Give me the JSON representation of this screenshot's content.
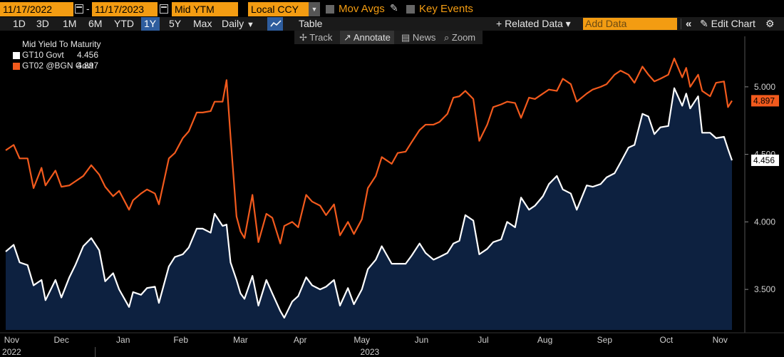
{
  "toolbar": {
    "start_date": "11/17/2022",
    "end_date": "11/17/2023",
    "field": "Mid YTM",
    "currency": "Local CCY",
    "mov_avgs": "Mov Avgs",
    "key_events": "Key Events"
  },
  "periods": [
    "1D",
    "3D",
    "1M",
    "6M",
    "YTD",
    "1Y",
    "5Y",
    "Max"
  ],
  "active_period": "1Y",
  "frequency": "Daily",
  "frequency_arrow": "▼",
  "table_label": "Table",
  "related_data": "+ Related Data ▾",
  "add_data_placeholder": "Add Data",
  "collapse_icon": "«",
  "edit_chart": "Edit Chart",
  "tools": [
    {
      "icon": "✢",
      "label": "Track"
    },
    {
      "icon": "↗",
      "label": "Annotate"
    },
    {
      "icon": "▤",
      "label": "News"
    },
    {
      "icon": "⌕",
      "label": "Zoom"
    }
  ],
  "legend": {
    "title": "Mid Yield To Maturity",
    "series": [
      {
        "name": "GT10 Govt",
        "value": "4.456",
        "color": "#ffffff"
      },
      {
        "name": "GT02 @BGN Govt",
        "value": "4.897",
        "color": "#f25a1d"
      }
    ]
  },
  "colors": {
    "orange": "#f25a1d",
    "white": "#ffffff",
    "area_fill": "#0d2140",
    "accent": "#f39c12"
  },
  "chart_data": {
    "type": "line",
    "title": "Mid Yield To Maturity",
    "ylim": [
      3.2,
      5.3
    ],
    "yticks": [
      3.5,
      4.0,
      4.5,
      5.0
    ],
    "ytick_labels": [
      "3.500",
      "4.000",
      "4.500",
      "5.000"
    ],
    "x_months": [
      "Nov",
      "Dec",
      "Jan",
      "Feb",
      "Mar",
      "Apr",
      "May",
      "Jun",
      "Jul",
      "Aug",
      "Sep",
      "Oct",
      "Nov"
    ],
    "x_years": [
      "2022",
      "2023"
    ],
    "x_range": [
      "2022-11-17",
      "2023-11-17"
    ],
    "series": [
      {
        "name": "GT10 Govt",
        "last": "4.456",
        "color": "#ffffff",
        "fill": true,
        "points": [
          [
            "2022-11-17",
            3.78
          ],
          [
            "2022-11-21",
            3.83
          ],
          [
            "2022-11-24",
            3.7
          ],
          [
            "2022-11-28",
            3.68
          ],
          [
            "2022-12-01",
            3.53
          ],
          [
            "2022-12-05",
            3.57
          ],
          [
            "2022-12-07",
            3.42
          ],
          [
            "2022-12-12",
            3.57
          ],
          [
            "2022-12-15",
            3.44
          ],
          [
            "2022-12-19",
            3.59
          ],
          [
            "2022-12-22",
            3.68
          ],
          [
            "2022-12-26",
            3.82
          ],
          [
            "2022-12-30",
            3.88
          ],
          [
            "2023-01-03",
            3.79
          ],
          [
            "2023-01-06",
            3.56
          ],
          [
            "2023-01-10",
            3.62
          ],
          [
            "2023-01-13",
            3.5
          ],
          [
            "2023-01-18",
            3.37
          ],
          [
            "2023-01-20",
            3.48
          ],
          [
            "2023-01-24",
            3.46
          ],
          [
            "2023-01-27",
            3.51
          ],
          [
            "2023-01-31",
            3.52
          ],
          [
            "2023-02-02",
            3.4
          ],
          [
            "2023-02-07",
            3.67
          ],
          [
            "2023-02-10",
            3.74
          ],
          [
            "2023-02-14",
            3.76
          ],
          [
            "2023-02-17",
            3.81
          ],
          [
            "2023-02-21",
            3.95
          ],
          [
            "2023-02-24",
            3.95
          ],
          [
            "2023-02-28",
            3.92
          ],
          [
            "2023-03-02",
            4.06
          ],
          [
            "2023-03-06",
            3.97
          ],
          [
            "2023-03-08",
            3.98
          ],
          [
            "2023-03-10",
            3.7
          ],
          [
            "2023-03-13",
            3.57
          ],
          [
            "2023-03-15",
            3.47
          ],
          [
            "2023-03-17",
            3.43
          ],
          [
            "2023-03-21",
            3.6
          ],
          [
            "2023-03-24",
            3.38
          ],
          [
            "2023-03-28",
            3.57
          ],
          [
            "2023-03-31",
            3.47
          ],
          [
            "2023-04-04",
            3.34
          ],
          [
            "2023-04-06",
            3.29
          ],
          [
            "2023-04-10",
            3.41
          ],
          [
            "2023-04-13",
            3.45
          ],
          [
            "2023-04-17",
            3.59
          ],
          [
            "2023-04-20",
            3.53
          ],
          [
            "2023-04-24",
            3.5
          ],
          [
            "2023-04-27",
            3.52
          ],
          [
            "2023-05-01",
            3.57
          ],
          [
            "2023-05-04",
            3.38
          ],
          [
            "2023-05-08",
            3.51
          ],
          [
            "2023-05-11",
            3.39
          ],
          [
            "2023-05-15",
            3.5
          ],
          [
            "2023-05-18",
            3.65
          ],
          [
            "2023-05-22",
            3.72
          ],
          [
            "2023-05-25",
            3.82
          ],
          [
            "2023-05-30",
            3.69
          ],
          [
            "2023-06-02",
            3.69
          ],
          [
            "2023-06-06",
            3.69
          ],
          [
            "2023-06-09",
            3.75
          ],
          [
            "2023-06-13",
            3.84
          ],
          [
            "2023-06-16",
            3.77
          ],
          [
            "2023-06-20",
            3.72
          ],
          [
            "2023-06-23",
            3.74
          ],
          [
            "2023-06-27",
            3.77
          ],
          [
            "2023-06-30",
            3.84
          ],
          [
            "2023-07-03",
            3.86
          ],
          [
            "2023-07-06",
            4.05
          ],
          [
            "2023-07-10",
            4.01
          ],
          [
            "2023-07-13",
            3.76
          ],
          [
            "2023-07-17",
            3.8
          ],
          [
            "2023-07-20",
            3.85
          ],
          [
            "2023-07-24",
            3.87
          ],
          [
            "2023-07-27",
            4.0
          ],
          [
            "2023-07-31",
            3.96
          ],
          [
            "2023-08-03",
            4.18
          ],
          [
            "2023-08-07",
            4.09
          ],
          [
            "2023-08-10",
            4.12
          ],
          [
            "2023-08-14",
            4.19
          ],
          [
            "2023-08-17",
            4.28
          ],
          [
            "2023-08-21",
            4.34
          ],
          [
            "2023-08-24",
            4.24
          ],
          [
            "2023-08-28",
            4.21
          ],
          [
            "2023-08-31",
            4.09
          ],
          [
            "2023-09-05",
            4.27
          ],
          [
            "2023-09-08",
            4.26
          ],
          [
            "2023-09-12",
            4.28
          ],
          [
            "2023-09-15",
            4.33
          ],
          [
            "2023-09-19",
            4.36
          ],
          [
            "2023-09-22",
            4.44
          ],
          [
            "2023-09-26",
            4.55
          ],
          [
            "2023-09-29",
            4.57
          ],
          [
            "2023-10-03",
            4.8
          ],
          [
            "2023-10-06",
            4.78
          ],
          [
            "2023-10-09",
            4.65
          ],
          [
            "2023-10-12",
            4.7
          ],
          [
            "2023-10-16",
            4.71
          ],
          [
            "2023-10-19",
            4.99
          ],
          [
            "2023-10-23",
            4.86
          ],
          [
            "2023-10-25",
            4.95
          ],
          [
            "2023-10-27",
            4.84
          ],
          [
            "2023-10-31",
            4.93
          ],
          [
            "2023-11-02",
            4.66
          ],
          [
            "2023-11-06",
            4.66
          ],
          [
            "2023-11-09",
            4.62
          ],
          [
            "2023-11-13",
            4.63
          ],
          [
            "2023-11-15",
            4.54
          ],
          [
            "2023-11-17",
            4.456
          ]
        ]
      },
      {
        "name": "GT02 @BGN Govt",
        "last": "4.897",
        "color": "#f25a1d",
        "fill": false,
        "points": [
          [
            "2022-11-17",
            4.53
          ],
          [
            "2022-11-21",
            4.57
          ],
          [
            "2022-11-24",
            4.47
          ],
          [
            "2022-11-28",
            4.47
          ],
          [
            "2022-12-01",
            4.25
          ],
          [
            "2022-12-05",
            4.4
          ],
          [
            "2022-12-07",
            4.27
          ],
          [
            "2022-12-12",
            4.38
          ],
          [
            "2022-12-15",
            4.26
          ],
          [
            "2022-12-19",
            4.27
          ],
          [
            "2022-12-22",
            4.3
          ],
          [
            "2022-12-26",
            4.34
          ],
          [
            "2022-12-30",
            4.42
          ],
          [
            "2023-01-03",
            4.35
          ],
          [
            "2023-01-06",
            4.26
          ],
          [
            "2023-01-10",
            4.19
          ],
          [
            "2023-01-13",
            4.23
          ],
          [
            "2023-01-18",
            4.09
          ],
          [
            "2023-01-20",
            4.16
          ],
          [
            "2023-01-24",
            4.21
          ],
          [
            "2023-01-27",
            4.24
          ],
          [
            "2023-01-31",
            4.21
          ],
          [
            "2023-02-02",
            4.13
          ],
          [
            "2023-02-07",
            4.47
          ],
          [
            "2023-02-10",
            4.51
          ],
          [
            "2023-02-14",
            4.62
          ],
          [
            "2023-02-17",
            4.67
          ],
          [
            "2023-02-21",
            4.81
          ],
          [
            "2023-02-24",
            4.81
          ],
          [
            "2023-02-28",
            4.82
          ],
          [
            "2023-03-02",
            4.89
          ],
          [
            "2023-03-06",
            4.89
          ],
          [
            "2023-03-08",
            5.05
          ],
          [
            "2023-03-10",
            4.63
          ],
          [
            "2023-03-13",
            4.04
          ],
          [
            "2023-03-15",
            3.93
          ],
          [
            "2023-03-17",
            3.88
          ],
          [
            "2023-03-21",
            4.2
          ],
          [
            "2023-03-24",
            3.85
          ],
          [
            "2023-03-28",
            4.06
          ],
          [
            "2023-03-31",
            4.03
          ],
          [
            "2023-04-04",
            3.84
          ],
          [
            "2023-04-06",
            3.97
          ],
          [
            "2023-04-10",
            4.0
          ],
          [
            "2023-04-13",
            3.96
          ],
          [
            "2023-04-17",
            4.2
          ],
          [
            "2023-04-20",
            4.15
          ],
          [
            "2023-04-24",
            4.12
          ],
          [
            "2023-04-27",
            4.05
          ],
          [
            "2023-05-01",
            4.13
          ],
          [
            "2023-05-04",
            3.9
          ],
          [
            "2023-05-08",
            4.0
          ],
          [
            "2023-05-11",
            3.91
          ],
          [
            "2023-05-15",
            4.02
          ],
          [
            "2023-05-18",
            4.25
          ],
          [
            "2023-05-22",
            4.34
          ],
          [
            "2023-05-25",
            4.48
          ],
          [
            "2023-05-30",
            4.43
          ],
          [
            "2023-06-02",
            4.51
          ],
          [
            "2023-06-06",
            4.52
          ],
          [
            "2023-06-09",
            4.59
          ],
          [
            "2023-06-13",
            4.68
          ],
          [
            "2023-06-16",
            4.72
          ],
          [
            "2023-06-20",
            4.72
          ],
          [
            "2023-06-23",
            4.74
          ],
          [
            "2023-06-27",
            4.8
          ],
          [
            "2023-06-30",
            4.92
          ],
          [
            "2023-07-03",
            4.93
          ],
          [
            "2023-07-06",
            4.97
          ],
          [
            "2023-07-10",
            4.91
          ],
          [
            "2023-07-13",
            4.6
          ],
          [
            "2023-07-17",
            4.72
          ],
          [
            "2023-07-20",
            4.85
          ],
          [
            "2023-07-24",
            4.87
          ],
          [
            "2023-07-27",
            4.89
          ],
          [
            "2023-07-31",
            4.88
          ],
          [
            "2023-08-03",
            4.77
          ],
          [
            "2023-08-07",
            4.92
          ],
          [
            "2023-08-10",
            4.91
          ],
          [
            "2023-08-14",
            4.95
          ],
          [
            "2023-08-17",
            4.98
          ],
          [
            "2023-08-21",
            4.97
          ],
          [
            "2023-08-24",
            5.06
          ],
          [
            "2023-08-28",
            5.02
          ],
          [
            "2023-08-31",
            4.89
          ],
          [
            "2023-09-05",
            4.95
          ],
          [
            "2023-09-08",
            4.98
          ],
          [
            "2023-09-12",
            5.0
          ],
          [
            "2023-09-15",
            5.02
          ],
          [
            "2023-09-19",
            5.09
          ],
          [
            "2023-09-22",
            5.12
          ],
          [
            "2023-09-26",
            5.09
          ],
          [
            "2023-09-29",
            5.03
          ],
          [
            "2023-10-03",
            5.15
          ],
          [
            "2023-10-06",
            5.09
          ],
          [
            "2023-10-09",
            5.04
          ],
          [
            "2023-10-12",
            5.06
          ],
          [
            "2023-10-16",
            5.09
          ],
          [
            "2023-10-19",
            5.21
          ],
          [
            "2023-10-23",
            5.07
          ],
          [
            "2023-10-25",
            5.14
          ],
          [
            "2023-10-27",
            5.0
          ],
          [
            "2023-10-31",
            5.09
          ],
          [
            "2023-11-02",
            4.97
          ],
          [
            "2023-11-06",
            4.93
          ],
          [
            "2023-11-09",
            5.03
          ],
          [
            "2023-11-13",
            5.04
          ],
          [
            "2023-11-15",
            4.85
          ],
          [
            "2023-11-17",
            4.897
          ]
        ]
      }
    ]
  }
}
